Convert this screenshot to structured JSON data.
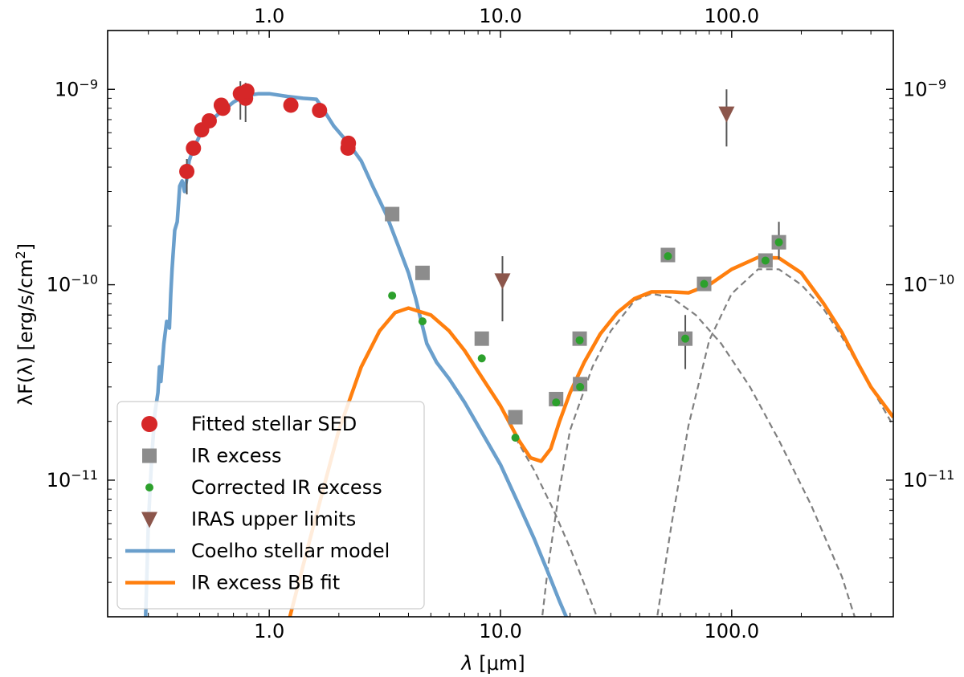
{
  "chart_data": {
    "type": "scatter",
    "xscale": "log",
    "yscale": "log",
    "xlim": [
      0.2,
      500
    ],
    "ylim": [
      2e-12,
      2e-09
    ],
    "xlabel_italic": "λ",
    "xlabel_unit": " [μm]",
    "ylabel": "λF(λ) [erg/s/cm",
    "ylabel_sup": "2",
    "ylabel_close": "]",
    "x_tick_labels": [
      "1.0",
      "10.0",
      "100.0"
    ],
    "x_top_tick_labels": [
      "1.0",
      "10.0",
      "100.0"
    ],
    "y_tick_labels": [
      {
        "base": "10",
        "exp": "−9",
        "value": 1e-09
      },
      {
        "base": "10",
        "exp": "−10",
        "value": 1e-10
      },
      {
        "base": "10",
        "exp": "−11",
        "value": 1e-11
      }
    ],
    "colors": {
      "stellar_sed": "#d62728",
      "ir_excess": "#8c8c8c",
      "corrected": "#2ca02c",
      "iras": "#8c564b",
      "coelho": "#6a9fcc",
      "bbfit": "#ff7f0e",
      "components": "#7f7f7f"
    },
    "legend": {
      "placement": "lower-left",
      "entries": [
        {
          "label": "Fitted stellar SED",
          "marker": "circle",
          "color": "#d62728"
        },
        {
          "label": "IR excess",
          "marker": "square",
          "color": "#8c8c8c"
        },
        {
          "label": "Corrected IR excess",
          "marker": "smalldot",
          "color": "#2ca02c"
        },
        {
          "label": "IRAS upper limits",
          "marker": "triangle-down",
          "color": "#8c564b"
        },
        {
          "label": "Coelho stellar model",
          "marker": "line",
          "color": "#6a9fcc"
        },
        {
          "label": "IR excess BB fit",
          "marker": "line",
          "color": "#ff7f0e"
        }
      ]
    },
    "series": [
      {
        "name": "Fitted stellar SED",
        "kind": "circle",
        "points": [
          {
            "x": 0.44,
            "y": 3.8e-10,
            "elo": 9e-11,
            "ehi": 6e-11
          },
          {
            "x": 0.47,
            "y": 5e-10
          },
          {
            "x": 0.51,
            "y": 6.2e-10
          },
          {
            "x": 0.55,
            "y": 6.9e-10
          },
          {
            "x": 0.62,
            "y": 8.3e-10
          },
          {
            "x": 0.63,
            "y": 8e-10
          },
          {
            "x": 0.75,
            "y": 9.5e-10,
            "elo": 2.5e-10,
            "ehi": 1.5e-10
          },
          {
            "x": 0.79,
            "y": 9e-10,
            "elo": 2.2e-10,
            "ehi": 1.8e-10
          },
          {
            "x": 0.8,
            "y": 9.8e-10
          },
          {
            "x": 1.24,
            "y": 8.3e-10
          },
          {
            "x": 1.65,
            "y": 7.8e-10
          },
          {
            "x": 2.19,
            "y": 5e-10
          },
          {
            "x": 2.2,
            "y": 5.3e-10
          }
        ]
      },
      {
        "name": "IR excess",
        "kind": "square",
        "points": [
          {
            "x": 3.4,
            "y": 2.3e-10
          },
          {
            "x": 4.6,
            "y": 1.15e-10
          },
          {
            "x": 8.3,
            "y": 5.3e-11
          },
          {
            "x": 11.6,
            "y": 2.1e-11
          },
          {
            "x": 17.4,
            "y": 2.6e-11
          },
          {
            "x": 22,
            "y": 5.3e-11
          },
          {
            "x": 22.1,
            "y": 3.1e-11
          },
          {
            "x": 53,
            "y": 1.42e-10,
            "elo": 1e-11,
            "ehi": 1e-11
          },
          {
            "x": 63,
            "y": 5.3e-11,
            "elo": 1.6e-11,
            "ehi": 1.7e-11
          },
          {
            "x": 76,
            "y": 1.01e-10
          },
          {
            "x": 140,
            "y": 1.33e-10
          },
          {
            "x": 160,
            "y": 1.65e-10,
            "elo": 3e-11,
            "ehi": 4.5e-11
          }
        ]
      },
      {
        "name": "Corrected IR excess",
        "kind": "smalldot",
        "points": [
          {
            "x": 3.4,
            "y": 8.8e-11
          },
          {
            "x": 4.6,
            "y": 6.5e-11
          },
          {
            "x": 8.3,
            "y": 4.2e-11
          },
          {
            "x": 11.6,
            "y": 1.65e-11
          },
          {
            "x": 17.4,
            "y": 2.5e-11
          },
          {
            "x": 22,
            "y": 5.2e-11
          },
          {
            "x": 22.1,
            "y": 3e-11
          },
          {
            "x": 53,
            "y": 1.4e-10
          },
          {
            "x": 63,
            "y": 5.3e-11
          },
          {
            "x": 76,
            "y": 1.01e-10
          },
          {
            "x": 140,
            "y": 1.33e-10
          },
          {
            "x": 160,
            "y": 1.65e-10
          }
        ]
      },
      {
        "name": "IRAS upper limits",
        "kind": "triangle",
        "points": [
          {
            "x": 10.2,
            "y": 1.05e-10,
            "elo": 4e-11,
            "ehi": 3.5e-11
          },
          {
            "x": 95,
            "y": 7.5e-10,
            "elo": 2.4e-10,
            "ehi": 2.5e-10
          }
        ]
      },
      {
        "name": "Coelho stellar model",
        "kind": "line",
        "points": [
          [
            0.29,
            1.5e-12
          ],
          [
            0.3,
            6e-12
          ],
          [
            0.31,
            1.3e-11
          ],
          [
            0.32,
            2.2e-11
          ],
          [
            0.33,
            2.8e-11
          ],
          [
            0.335,
            3.8e-11
          ],
          [
            0.34,
            3.2e-11
          ],
          [
            0.35,
            5e-11
          ],
          [
            0.36,
            6.5e-11
          ],
          [
            0.37,
            6e-11
          ],
          [
            0.375,
            9e-11
          ],
          [
            0.38,
            1.2e-10
          ],
          [
            0.39,
            1.9e-10
          ],
          [
            0.4,
            2.1e-10
          ],
          [
            0.405,
            2.6e-10
          ],
          [
            0.41,
            3.2e-10
          ],
          [
            0.42,
            3.4e-10
          ],
          [
            0.43,
            3e-10
          ],
          [
            0.44,
            3.5e-10
          ],
          [
            0.45,
            4.3e-10
          ],
          [
            0.47,
            5e-10
          ],
          [
            0.49,
            5.5e-10
          ],
          [
            0.5,
            5.8e-10
          ],
          [
            0.52,
            6e-10
          ],
          [
            0.55,
            6.6e-10
          ],
          [
            0.58,
            7.2e-10
          ],
          [
            0.62,
            7.7e-10
          ],
          [
            0.65,
            8e-10
          ],
          [
            0.7,
            8.6e-10
          ],
          [
            0.75,
            9e-10
          ],
          [
            0.8,
            9.3e-10
          ],
          [
            0.9,
            9.5e-10
          ],
          [
            1.0,
            9.5e-10
          ],
          [
            1.2,
            9.2e-10
          ],
          [
            1.4,
            9e-10
          ],
          [
            1.6,
            8.9e-10
          ],
          [
            1.7,
            8e-10
          ],
          [
            1.9,
            6.5e-10
          ],
          [
            2.2,
            5.3e-10
          ],
          [
            2.5,
            4.3e-10
          ],
          [
            2.8,
            3.2e-10
          ],
          [
            3.2,
            2.3e-10
          ],
          [
            3.6,
            1.6e-10
          ],
          [
            4.0,
            1.15e-10
          ],
          [
            4.3,
            8.5e-11
          ],
          [
            4.5,
            6.8e-11
          ],
          [
            4.8,
            5e-11
          ],
          [
            5.3,
            4e-11
          ],
          [
            6,
            3.3e-11
          ],
          [
            7,
            2.5e-11
          ],
          [
            8,
            1.9e-11
          ],
          [
            10,
            1.2e-11
          ],
          [
            12,
            7.5e-12
          ],
          [
            14,
            5e-12
          ],
          [
            16,
            3.4e-12
          ],
          [
            18,
            2.4e-12
          ],
          [
            20,
            1.8e-12
          ]
        ]
      },
      {
        "name": "IR excess BB fit",
        "kind": "line",
        "points": [
          [
            1.2,
            1.8e-12
          ],
          [
            1.5,
            5e-12
          ],
          [
            2.0,
            1.8e-11
          ],
          [
            2.5,
            3.8e-11
          ],
          [
            3.0,
            5.8e-11
          ],
          [
            3.5,
            7.2e-11
          ],
          [
            4.0,
            7.6e-11
          ],
          [
            5.0,
            7e-11
          ],
          [
            6.0,
            5.8e-11
          ],
          [
            7.0,
            4.6e-11
          ],
          [
            8.0,
            3.6e-11
          ],
          [
            10,
            2.4e-11
          ],
          [
            12,
            1.6e-11
          ],
          [
            13.5,
            1.3e-11
          ],
          [
            15,
            1.25e-11
          ],
          [
            16.5,
            1.45e-11
          ],
          [
            18,
            2e-11
          ],
          [
            20,
            2.8e-11
          ],
          [
            23,
            4e-11
          ],
          [
            27,
            5.6e-11
          ],
          [
            32,
            7.2e-11
          ],
          [
            38,
            8.5e-11
          ],
          [
            45,
            9.2e-11
          ],
          [
            55,
            9.2e-11
          ],
          [
            65,
            9.1e-11
          ],
          [
            80,
            1e-10
          ],
          [
            100,
            1.2e-10
          ],
          [
            130,
            1.38e-10
          ],
          [
            160,
            1.37e-10
          ],
          [
            200,
            1.15e-10
          ],
          [
            250,
            8e-11
          ],
          [
            300,
            5.7e-11
          ],
          [
            350,
            4e-11
          ],
          [
            400,
            3e-11
          ],
          [
            500,
            2.1e-11
          ]
        ]
      },
      {
        "name": "",
        "kind": "dashed",
        "points": [
          [
            11.6,
            1.65e-11
          ],
          [
            14,
            1.12e-11
          ],
          [
            17,
            7e-12
          ],
          [
            20,
            4.5e-12
          ],
          [
            24,
            2.6e-12
          ],
          [
            27,
            1.8e-12
          ]
        ]
      },
      {
        "name": "",
        "kind": "dashed",
        "points": [
          [
            15,
            1.8e-12
          ],
          [
            16,
            3.5e-12
          ],
          [
            18,
            9e-12
          ],
          [
            20,
            1.8e-11
          ],
          [
            25,
            3.8e-11
          ],
          [
            30,
            5.8e-11
          ],
          [
            38,
            8.3e-11
          ],
          [
            45,
            9e-11
          ],
          [
            55,
            8.6e-11
          ],
          [
            70,
            7e-11
          ],
          [
            90,
            5e-11
          ],
          [
            120,
            3e-11
          ],
          [
            160,
            1.6e-11
          ],
          [
            220,
            7.5e-12
          ],
          [
            300,
            3.2e-12
          ],
          [
            350,
            1.8e-12
          ]
        ]
      },
      {
        "name": "",
        "kind": "dashed",
        "points": [
          [
            47,
            1.8e-12
          ],
          [
            55,
            6e-12
          ],
          [
            65,
            1.9e-11
          ],
          [
            80,
            5.2e-11
          ],
          [
            100,
            9e-11
          ],
          [
            130,
            1.2e-10
          ],
          [
            160,
            1.2e-10
          ],
          [
            200,
            1e-10
          ],
          [
            250,
            7.5e-11
          ],
          [
            300,
            5.4e-11
          ],
          [
            400,
            3e-11
          ],
          [
            500,
            1.9e-11
          ]
        ]
      }
    ]
  }
}
